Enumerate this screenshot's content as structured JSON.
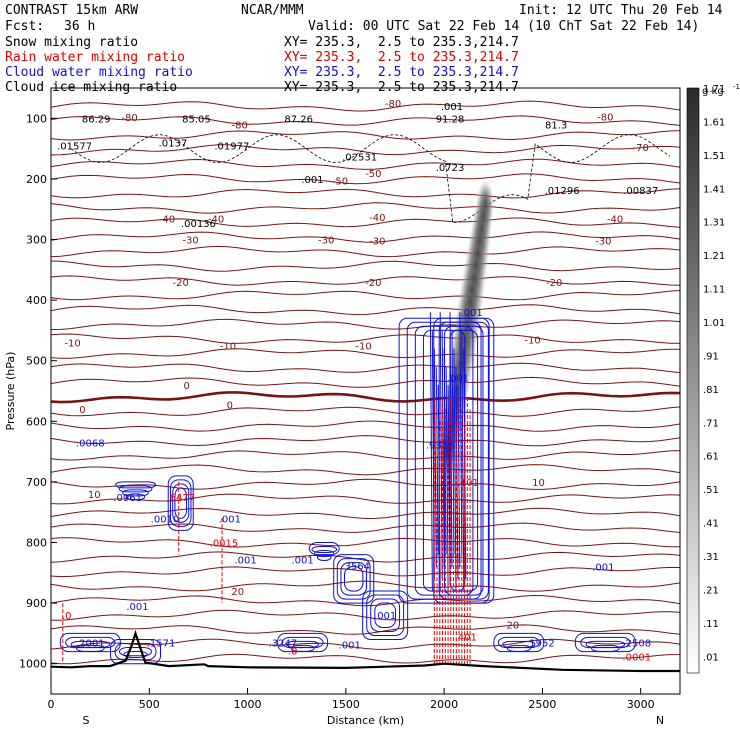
{
  "header": {
    "model": "CONTRAST 15km ARW",
    "org": "NCAR/MMM",
    "init": "Init: 12 UTC Thu 20 Feb 14",
    "fcst_label": "Fcst:",
    "fcst_value": "36 h",
    "valid": "Valid: 00 UTC Sat 22 Feb 14 (10 ChT Sat 22 Feb 14)"
  },
  "legend": [
    {
      "name": "Snow mixing ratio",
      "coords": "XY= 235.3,  2.5 to 235.3,214.7",
      "color": "#000000"
    },
    {
      "name": "Rain water mixing ratio",
      "coords": "XY= 235.3,  2.5 to 235.3,214.7",
      "color": "#e00000"
    },
    {
      "name": "Cloud water mixing ratio",
      "coords": "XY= 235.3,  2.5 to 235.3,214.7",
      "color": "#1010d0"
    },
    {
      "name": "Cloud ice mixing ratio",
      "coords": "XY= 235.3,  2.5 to 235.3,214.7",
      "color": "#000000"
    }
  ],
  "chart_data": {
    "type": "cross-section",
    "xlabel": "Distance (km)",
    "ylabel": "Pressure (hPa)",
    "xlim": [
      0,
      3200
    ],
    "ylim": [
      1050,
      50
    ],
    "x_ticks": [
      0,
      500,
      1000,
      1500,
      2000,
      2500,
      3000
    ],
    "y_ticks": [
      100,
      200,
      300,
      400,
      500,
      600,
      700,
      800,
      900,
      1000
    ],
    "x_end_labels": {
      "left": "S",
      "right": "N"
    },
    "colorbar": {
      "unit": "g kg",
      "unit_exp": "-1",
      "ticks": [
        ".01",
        ".11",
        ".21",
        ".31",
        ".41",
        ".51",
        ".61",
        ".71",
        ".81",
        ".91",
        "1.01",
        "1.11",
        "1.21",
        "1.31",
        "1.41",
        "1.51",
        "1.61",
        "1.71"
      ]
    },
    "temperature_labels": [
      {
        "t": "-80",
        "x": 400,
        "p": 98
      },
      {
        "t": "-80",
        "x": 960,
        "p": 110
      },
      {
        "t": "-80",
        "x": 1740,
        "p": 75
      },
      {
        "t": "-80",
        "x": 2820,
        "p": 97
      },
      {
        "t": "-70",
        "x": 3000,
        "p": 147
      },
      {
        "t": "-50",
        "x": 1470,
        "p": 203
      },
      {
        "t": "-50",
        "x": 1640,
        "p": 190
      },
      {
        "t": "-40",
        "x": 590,
        "p": 265
      },
      {
        "t": "-40",
        "x": 840,
        "p": 265
      },
      {
        "t": "-40",
        "x": 1660,
        "p": 263
      },
      {
        "t": "-40",
        "x": 2870,
        "p": 265
      },
      {
        "t": "-30",
        "x": 710,
        "p": 300
      },
      {
        "t": "-30",
        "x": 1400,
        "p": 300
      },
      {
        "t": "-30",
        "x": 1660,
        "p": 302
      },
      {
        "t": "-30",
        "x": 2810,
        "p": 302
      },
      {
        "t": "-20",
        "x": 660,
        "p": 370
      },
      {
        "t": "-20",
        "x": 1640,
        "p": 370
      },
      {
        "t": "-20",
        "x": 2560,
        "p": 370
      },
      {
        "t": "-10",
        "x": 110,
        "p": 470
      },
      {
        "t": "-10",
        "x": 900,
        "p": 475
      },
      {
        "t": "-10",
        "x": 1590,
        "p": 475
      },
      {
        "t": "-10",
        "x": 2450,
        "p": 465
      },
      {
        "t": "0",
        "x": 160,
        "p": 580
      },
      {
        "t": "0",
        "x": 690,
        "p": 540
      },
      {
        "t": "0",
        "x": 910,
        "p": 572
      },
      {
        "t": "10",
        "x": 220,
        "p": 720
      },
      {
        "t": "10",
        "x": 2480,
        "p": 700
      },
      {
        "t": "20",
        "x": 950,
        "p": 880
      },
      {
        "t": "20",
        "x": 2350,
        "p": 935
      }
    ],
    "max_labels": [
      {
        "v": "86.29",
        "x": 230,
        "p": 100,
        "color": "#000000"
      },
      {
        "v": "85.05",
        "x": 740,
        "p": 100,
        "color": "#000000"
      },
      {
        "v": "87.26",
        "x": 1260,
        "p": 100,
        "color": "#000000"
      },
      {
        "v": "91.28",
        "x": 2030,
        "p": 100,
        "color": "#000000"
      },
      {
        "v": "81.3",
        "x": 2570,
        "p": 110,
        "color": "#000000"
      },
      {
        "v": ".01577",
        "x": 120,
        "p": 145,
        "color": "#000000"
      },
      {
        "v": ".0137",
        "x": 620,
        "p": 140,
        "color": "#000000"
      },
      {
        "v": ".01977",
        "x": 920,
        "p": 145,
        "color": "#000000"
      },
      {
        "v": ".02531",
        "x": 1570,
        "p": 163,
        "color": "#000000"
      },
      {
        "v": ".0723",
        "x": 2030,
        "p": 180,
        "color": "#000000"
      },
      {
        "v": ".001",
        "x": 1330,
        "p": 200,
        "color": "#000000"
      },
      {
        "v": ".001",
        "x": 2040,
        "p": 80,
        "color": "#000000"
      },
      {
        "v": ".01296",
        "x": 2600,
        "p": 218,
        "color": "#000000"
      },
      {
        "v": ".00837",
        "x": 3000,
        "p": 218,
        "color": "#000000"
      },
      {
        "v": ".00136",
        "x": 750,
        "p": 273,
        "color": "#000000"
      },
      {
        "v": ".001",
        "x": 2140,
        "p": 420,
        "color": "#1010d0"
      },
      {
        "v": ".001",
        "x": 2070,
        "p": 528,
        "color": "#1010d0"
      },
      {
        "v": ".0068",
        "x": 200,
        "p": 635,
        "color": "#1010d0"
      },
      {
        "v": ".9356",
        "x": 1980,
        "p": 638,
        "color": "#1010d0"
      },
      {
        "v": ".401",
        "x": 2120,
        "p": 700,
        "color": "#e00000"
      },
      {
        "v": ".0961",
        "x": 390,
        "p": 725,
        "color": "#1010d0"
      },
      {
        "v": ".6477",
        "x": 660,
        "p": 725,
        "color": "#e00000"
      },
      {
        "v": ".0010",
        "x": 580,
        "p": 760,
        "color": "#1010d0"
      },
      {
        "v": ".001",
        "x": 910,
        "p": 760,
        "color": "#1010d0"
      },
      {
        "v": ".0015",
        "x": 880,
        "p": 800,
        "color": "#e00000"
      },
      {
        "v": ".001",
        "x": 990,
        "p": 828,
        "color": "#1010d0"
      },
      {
        "v": ".001",
        "x": 1280,
        "p": 828,
        "color": "#1010d0"
      },
      {
        "v": ".3564",
        "x": 1550,
        "p": 838,
        "color": "#1010d0"
      },
      {
        "v": ".001",
        "x": 2810,
        "p": 840,
        "color": "#1010d0"
      },
      {
        "v": ".0",
        "x": 80,
        "p": 920,
        "color": "#e00000"
      },
      {
        "v": ".001",
        "x": 440,
        "p": 905,
        "color": "#1010d0"
      },
      {
        "v": ".001",
        "x": 1700,
        "p": 920,
        "color": "#1010d0"
      },
      {
        "v": ".2001",
        "x": 200,
        "p": 965,
        "color": "#1010d0"
      },
      {
        "v": ".1571",
        "x": 560,
        "p": 965,
        "color": "#1010d0"
      },
      {
        "v": ".3247",
        "x": 1180,
        "p": 965,
        "color": "#1010d0"
      },
      {
        "v": ".0",
        "x": 1230,
        "p": 978,
        "color": "#e00000"
      },
      {
        "v": ".001",
        "x": 1520,
        "p": 968,
        "color": "#1010d0"
      },
      {
        "v": ".401",
        "x": 2110,
        "p": 955,
        "color": "#e00000"
      },
      {
        "v": ".1952",
        "x": 2490,
        "p": 965,
        "color": "#1010d0"
      },
      {
        "v": ".2508",
        "x": 2980,
        "p": 965,
        "color": "#1010d0"
      },
      {
        "v": ".0001",
        "x": 2980,
        "p": 988,
        "color": "#e00000"
      }
    ],
    "snow_max": {
      "value_max": 1.71,
      "core_p": [
        240,
        650
      ],
      "x_range": [
        1990,
        2230
      ]
    },
    "terrain": [
      [
        0,
        1005
      ],
      [
        100,
        1006
      ],
      [
        200,
        1004
      ],
      [
        300,
        1004
      ],
      [
        380,
        995
      ],
      [
        410,
        970
      ],
      [
        430,
        950
      ],
      [
        450,
        970
      ],
      [
        480,
        998
      ],
      [
        600,
        1004
      ],
      [
        780,
        1001
      ],
      [
        800,
        1004
      ],
      [
        1000,
        1006
      ],
      [
        1500,
        1007
      ],
      [
        1900,
        1003
      ],
      [
        2000,
        1000
      ],
      [
        2200,
        1004
      ],
      [
        2600,
        1010
      ],
      [
        3000,
        1012
      ],
      [
        3200,
        1012
      ]
    ]
  }
}
